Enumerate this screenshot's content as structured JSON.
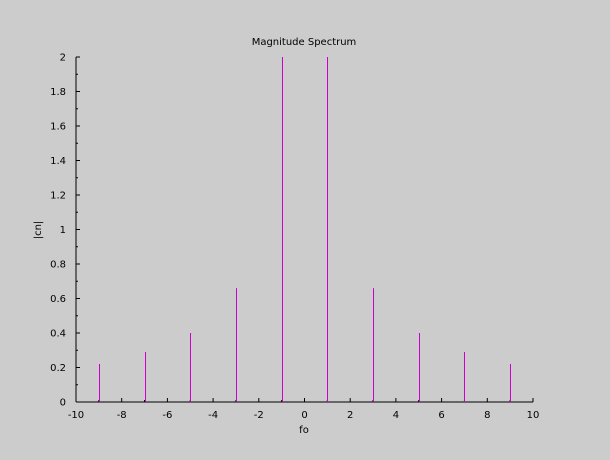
{
  "chart_data": {
    "type": "bar",
    "title": "Magnitude Spectrum",
    "xlabel": "fo",
    "ylabel": "|cn|",
    "xlim": [
      -10,
      10
    ],
    "ylim": [
      0,
      2
    ],
    "xticks": [
      "-10",
      "-8",
      "-6",
      "-4",
      "-2",
      "0",
      "2",
      "4",
      "6",
      "8",
      "10"
    ],
    "yticks": [
      "0",
      "0.2",
      "0.4",
      "0.6",
      "0.8",
      "1",
      "1.2",
      "1.4",
      "1.6",
      "1.8",
      "2"
    ],
    "grid": false,
    "series": [
      {
        "color": "#cc00cc",
        "x": [
          -9,
          -7,
          -5,
          -3,
          -1,
          1,
          3,
          5,
          7,
          9
        ],
        "values": [
          0.22,
          0.29,
          0.4,
          0.66,
          2.0,
          2.0,
          0.66,
          0.4,
          0.29,
          0.22
        ]
      }
    ]
  },
  "colors": {
    "background": "#cccccc",
    "axis": "#000000",
    "stem": "#cc00cc"
  }
}
